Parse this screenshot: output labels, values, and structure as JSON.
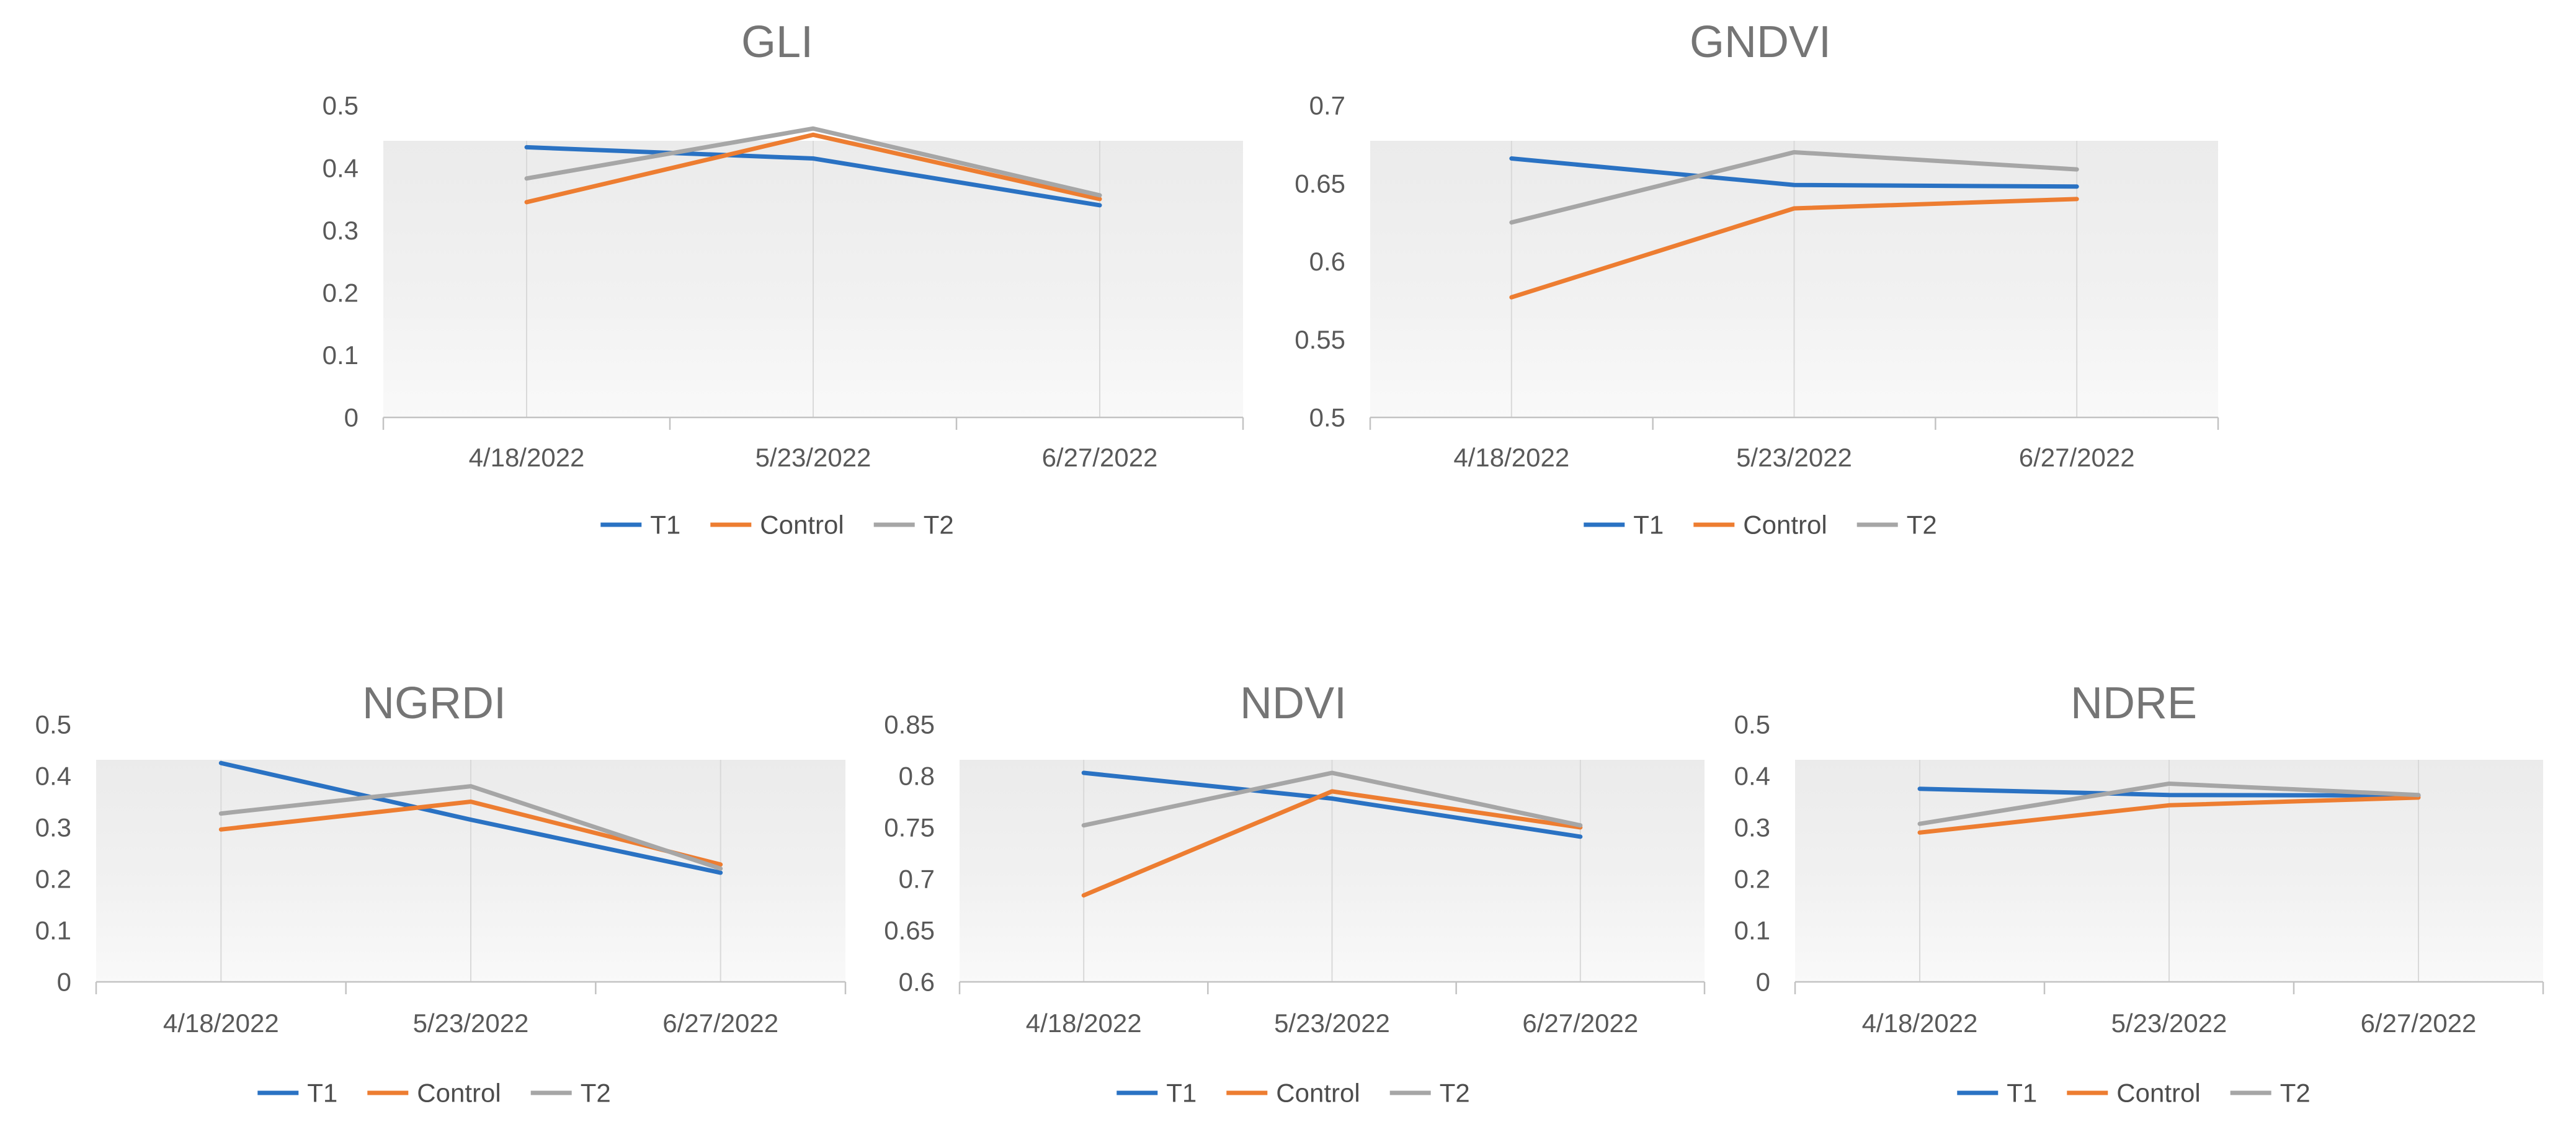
{
  "page": {
    "background": "#ffffff",
    "description": "Five vegetation-index line charts (GLI, GNDVI, NGRDI, NDVI, NDRE) comparing T1, Control and T2 across three dates"
  },
  "colors": {
    "t1": "#2A72C3",
    "control": "#ED7D31",
    "t2": "#A6A6A6",
    "tick_label": "#595959",
    "title": "#757575",
    "legend_label": "#4d4d4d",
    "axis_line": "#C3C3C3",
    "gridline": "#D9D9D9",
    "plot_fill_top": "#EBEBEB",
    "plot_fill_bottom": "#F9F9F9"
  },
  "chart_data": [
    {
      "type": "line",
      "title": "GLI",
      "categories": [
        "4/18/2022",
        "5/23/2022",
        "6/27/2022"
      ],
      "ylim": [
        0,
        0.5
      ],
      "y_ticks": [
        "0.5",
        "0.4",
        "0.3",
        "0.2",
        "0.1",
        "0"
      ],
      "legend_position": "bottom",
      "grid": "vertical category gridlines",
      "series": [
        {
          "name": "T1",
          "color": "t1",
          "values": [
            0.433,
            0.415,
            0.34
          ]
        },
        {
          "name": "Control",
          "color": "control",
          "values": [
            0.345,
            0.453,
            0.35
          ]
        },
        {
          "name": "T2",
          "color": "t2",
          "values": [
            0.383,
            0.463,
            0.356
          ]
        }
      ]
    },
    {
      "type": "line",
      "title": "GNDVI",
      "categories": [
        "4/18/2022",
        "5/23/2022",
        "6/27/2022"
      ],
      "ylim": [
        0.5,
        0.7
      ],
      "y_ticks": [
        "0.7",
        "0.65",
        "0.6",
        "0.55",
        "0.5"
      ],
      "legend_position": "bottom",
      "grid": "vertical category gridlines",
      "series": [
        {
          "name": "T1",
          "color": "t1",
          "values": [
            0.666,
            0.649,
            0.648
          ]
        },
        {
          "name": "Control",
          "color": "control",
          "values": [
            0.577,
            0.634,
            0.64
          ]
        },
        {
          "name": "T2",
          "color": "t2",
          "values": [
            0.625,
            0.67,
            0.659
          ]
        }
      ]
    },
    {
      "type": "line",
      "title": "NGRDI",
      "categories": [
        "4/18/2022",
        "5/23/2022",
        "6/27/2022"
      ],
      "ylim": [
        0,
        0.5
      ],
      "y_ticks": [
        "0.5",
        "0.4",
        "0.3",
        "0.2",
        "0.1",
        "0"
      ],
      "legend_position": "bottom",
      "grid": "vertical category gridlines",
      "series": [
        {
          "name": "T1",
          "color": "t1",
          "values": [
            0.425,
            0.315,
            0.212
          ]
        },
        {
          "name": "Control",
          "color": "control",
          "values": [
            0.296,
            0.35,
            0.228
          ]
        },
        {
          "name": "T2",
          "color": "t2",
          "values": [
            0.327,
            0.38,
            0.22
          ]
        }
      ]
    },
    {
      "type": "line",
      "title": "NDVI",
      "categories": [
        "4/18/2022",
        "5/23/2022",
        "6/27/2022"
      ],
      "ylim": [
        0.6,
        0.85
      ],
      "y_ticks": [
        "0.85",
        "0.8",
        "0.75",
        "0.7",
        "0.65",
        "0.6"
      ],
      "legend_position": "bottom",
      "grid": "vertical category gridlines",
      "series": [
        {
          "name": "T1",
          "color": "t1",
          "values": [
            0.803,
            0.778,
            0.741
          ]
        },
        {
          "name": "Control",
          "color": "control",
          "values": [
            0.684,
            0.785,
            0.75
          ]
        },
        {
          "name": "T2",
          "color": "t2",
          "values": [
            0.752,
            0.803,
            0.752
          ]
        }
      ]
    },
    {
      "type": "line",
      "title": "NDRE",
      "categories": [
        "4/18/2022",
        "5/23/2022",
        "6/27/2022"
      ],
      "ylim": [
        0,
        0.5
      ],
      "y_ticks": [
        "0.5",
        "0.4",
        "0.3",
        "0.2",
        "0.1",
        "0"
      ],
      "legend_position": "bottom",
      "grid": "vertical category gridlines",
      "series": [
        {
          "name": "T1",
          "color": "t1",
          "values": [
            0.375,
            0.363,
            0.362
          ]
        },
        {
          "name": "Control",
          "color": "control",
          "values": [
            0.29,
            0.343,
            0.358
          ]
        },
        {
          "name": "T2",
          "color": "t2",
          "values": [
            0.307,
            0.385,
            0.363
          ]
        }
      ]
    }
  ]
}
